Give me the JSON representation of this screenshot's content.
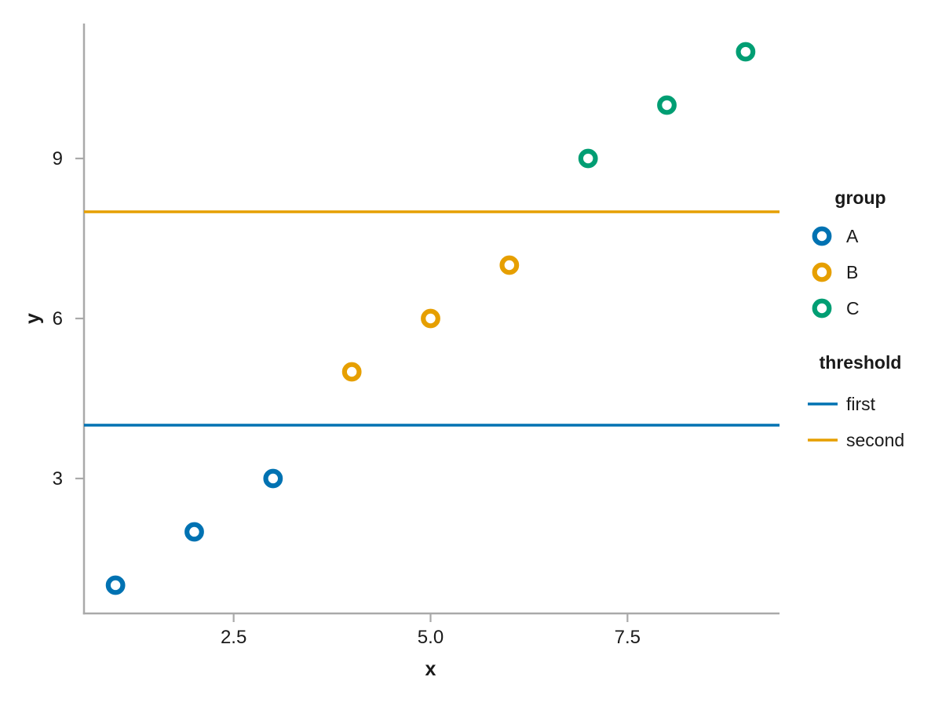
{
  "chart_data": {
    "type": "scatter",
    "title": "",
    "xlabel": "x",
    "ylabel": "y",
    "xlim": [
      0.6,
      9.43
    ],
    "ylim": [
      0.47,
      11.53
    ],
    "x_ticks": [
      2.5,
      5.0,
      7.5
    ],
    "x_tick_labels": [
      "2.5",
      "5.0",
      "7.5"
    ],
    "y_ticks": [
      3,
      6,
      9
    ],
    "y_tick_labels": [
      "3",
      "6",
      "9"
    ],
    "grid": false,
    "legend_position": "right",
    "marker": "open-circle",
    "series": [
      {
        "name": "A",
        "color": "#0072B2",
        "x": [
          1,
          2,
          3
        ],
        "y": [
          1,
          2,
          3
        ]
      },
      {
        "name": "B",
        "color": "#E69F00",
        "x": [
          4,
          5,
          6
        ],
        "y": [
          5,
          6,
          7
        ]
      },
      {
        "name": "C",
        "color": "#009E73",
        "x": [
          7,
          8,
          9
        ],
        "y": [
          9,
          10,
          11
        ]
      }
    ],
    "hlines": [
      {
        "name": "first",
        "y": 4,
        "color": "#0072B2"
      },
      {
        "name": "second",
        "y": 8,
        "color": "#E69F00"
      }
    ]
  },
  "axes": {
    "x_title": "x",
    "y_title": "y"
  },
  "legend": {
    "group": {
      "title": "group",
      "items": [
        {
          "label": "A",
          "color": "#0072B2"
        },
        {
          "label": "B",
          "color": "#E69F00"
        },
        {
          "label": "C",
          "color": "#009E73"
        }
      ]
    },
    "threshold": {
      "title": "threshold",
      "items": [
        {
          "label": "first",
          "color": "#0072B2"
        },
        {
          "label": "second",
          "color": "#E69F00"
        }
      ]
    }
  },
  "colors": {
    "axis": "#a9a9a9",
    "text": "#1a1a1a",
    "background": "#ffffff"
  }
}
